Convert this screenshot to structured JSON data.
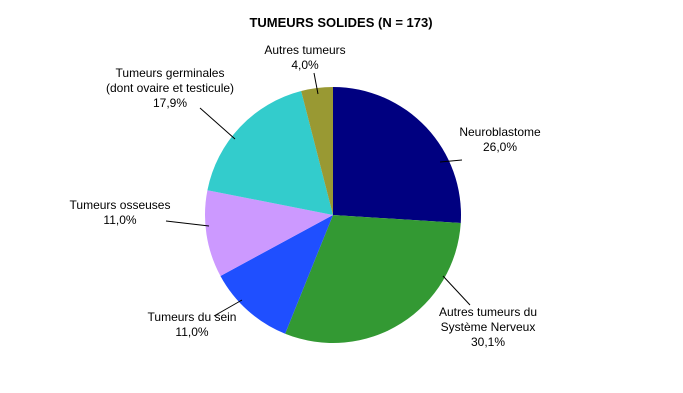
{
  "chart_data": {
    "type": "pie",
    "title": "TUMEURS SOLIDES (N = 173)",
    "categories": [
      "Neuroblastome",
      "Autres tumeurs du\nSystème Nerveux",
      "Tumeurs du sein",
      "Tumeurs osseuses",
      "Tumeurs germinales\n(dont ovaire et testicule)",
      "Autres tumeurs"
    ],
    "values": [
      26.0,
      30.1,
      11.0,
      11.0,
      17.9,
      4.0
    ],
    "value_labels": [
      "26,0%",
      "30,1%",
      "11,0%",
      "11,0%",
      "17,9%",
      "4,0%"
    ],
    "colors": [
      "#000080",
      "#339933",
      "#1f4fff",
      "#cc99ff",
      "#33cccc",
      "#999933"
    ]
  }
}
